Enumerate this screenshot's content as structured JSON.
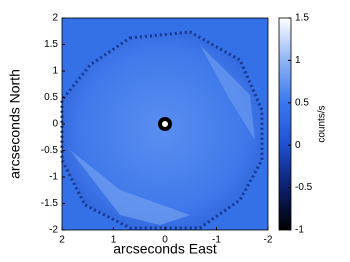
{
  "chart_data": {
    "type": "heatmap",
    "xlabel": "arcseconds East",
    "ylabel": "arcseconds North",
    "xlim": [
      2,
      -2
    ],
    "ylim": [
      -2,
      2
    ],
    "xticks": [
      2,
      1,
      0,
      -1,
      -2
    ],
    "yticks": [
      -2,
      -1.5,
      -1,
      -0.5,
      0,
      0.5,
      1,
      1.5,
      2
    ],
    "colorbar": {
      "label": "counts/s",
      "lim": [
        -1,
        1.5
      ],
      "ticks": [
        -1,
        -0.5,
        0,
        0.5,
        1,
        1.5
      ],
      "colormap": [
        "#000000",
        "#0b1f6b",
        "#1f4fd0",
        "#3a78ee",
        "#8fb4f5",
        "#ffffff"
      ]
    }
  }
}
